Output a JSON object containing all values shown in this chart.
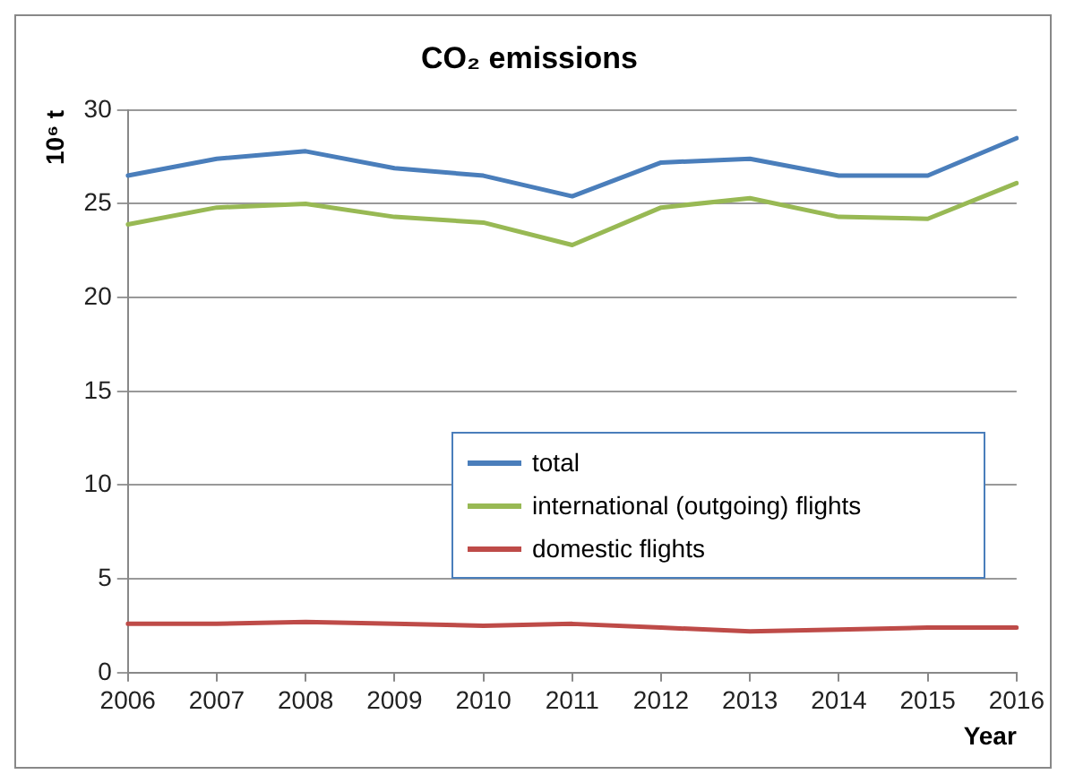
{
  "chart_data": {
    "type": "line",
    "title": "CO₂ emissions",
    "ylabel": "10⁶ t",
    "xlabel": "Year",
    "categories": [
      "2006",
      "2007",
      "2008",
      "2009",
      "2010",
      "2011",
      "2012",
      "2013",
      "2014",
      "2015",
      "2016"
    ],
    "series": [
      {
        "name": "total",
        "color": "#4a7ebb",
        "values": [
          26.5,
          27.4,
          27.8,
          26.9,
          26.5,
          25.4,
          27.2,
          27.4,
          26.5,
          26.5,
          28.5
        ]
      },
      {
        "name": "international (outgoing) flights",
        "color": "#98b954",
        "values": [
          23.9,
          24.8,
          25.0,
          24.3,
          24.0,
          22.8,
          24.8,
          25.3,
          24.3,
          24.2,
          26.1
        ]
      },
      {
        "name": "domestic flights",
        "color": "#be4b48",
        "values": [
          2.6,
          2.6,
          2.7,
          2.6,
          2.5,
          2.6,
          2.4,
          2.2,
          2.3,
          2.4,
          2.4
        ]
      }
    ],
    "ylim": [
      0,
      30
    ],
    "yticks": [
      0,
      5,
      10,
      15,
      20,
      25,
      30
    ],
    "grid": "y",
    "legend": "right",
    "marker": "none"
  }
}
